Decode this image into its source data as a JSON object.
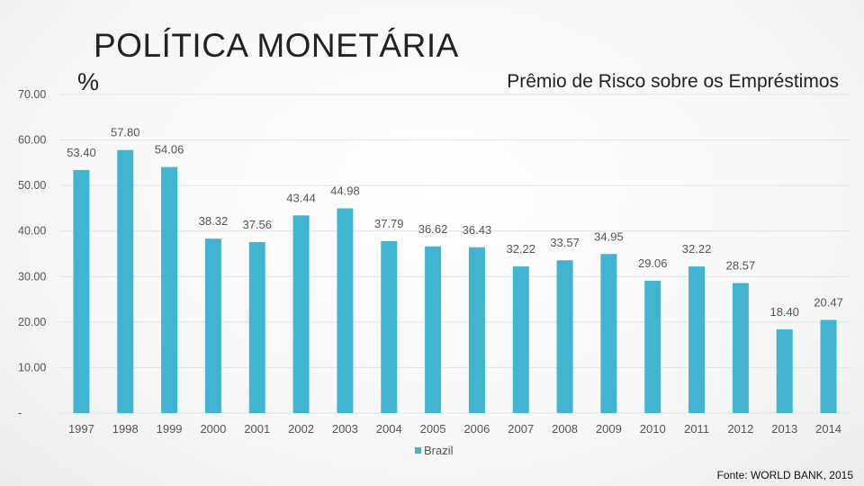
{
  "slide": {
    "title": "POLÍTICA MONETÁRIA",
    "source": "Fonte: WORLD BANK, 2015"
  },
  "chart_data": {
    "type": "bar",
    "title": "Prêmio de Risco sobre os Empréstimos",
    "unit_label": "%",
    "categories": [
      "1997",
      "1998",
      "1999",
      "2000",
      "2001",
      "2002",
      "2003",
      "2004",
      "2005",
      "2006",
      "2007",
      "2008",
      "2009",
      "2010",
      "2011",
      "2012",
      "2013",
      "2014"
    ],
    "series": [
      {
        "name": "Brazil",
        "color": "#41b5cf",
        "values": [
          53.4,
          57.8,
          54.06,
          38.32,
          37.56,
          43.44,
          44.98,
          37.79,
          36.62,
          36.43,
          32.22,
          33.57,
          34.95,
          29.06,
          32.22,
          28.57,
          18.4,
          20.47
        ]
      }
    ],
    "data_labels": [
      "53.40",
      "57.80",
      "54.06",
      "38.32",
      "37.56",
      "43.44",
      "44.98",
      "37.79",
      "36.62",
      "36.43",
      "32.22",
      "33.57",
      "34.95",
      "29.06",
      "32.22",
      "28.57",
      "18.40",
      "20.47"
    ],
    "yticks": [
      "-",
      "10.00",
      "20.00",
      "30.00",
      "40.00",
      "50.00",
      "60.00",
      "70.00"
    ],
    "ylim": [
      0,
      70
    ],
    "grid": true,
    "legend_position": "bottom"
  }
}
